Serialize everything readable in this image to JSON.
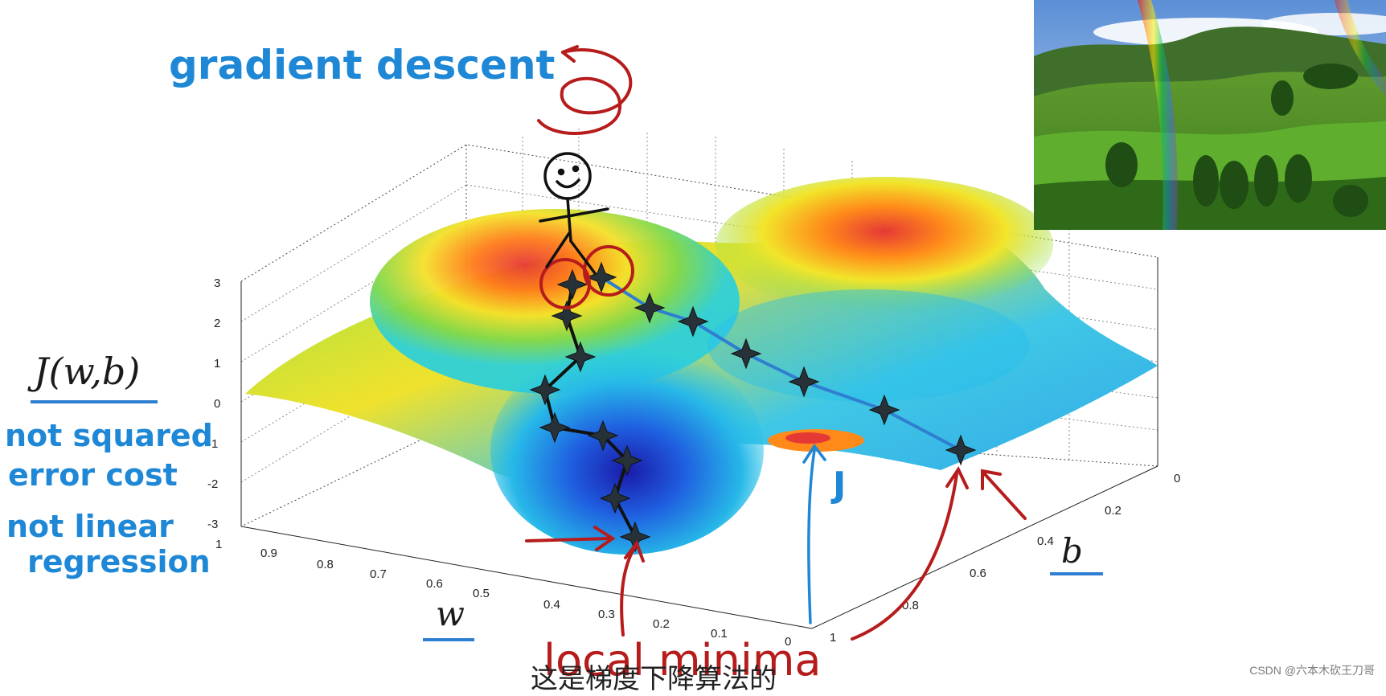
{
  "title": "gradient descent",
  "cost_label": "J(w,b)",
  "notes": [
    "not squared",
    "error cost",
    "not linear",
    "regression"
  ],
  "axis_w_label": "w",
  "axis_b_label": "b",
  "surface_label": "J",
  "minima_label": "local minima",
  "z_ticks": [
    "3",
    "2",
    "1",
    "0",
    "-1",
    "-2",
    "-3"
  ],
  "w_ticks": [
    "1",
    "0.9",
    "0.8",
    "0.7",
    "0.6",
    "0.5",
    "0.4",
    "0.3",
    "0.2",
    "0.1",
    "0"
  ],
  "b_ticks": [
    "0",
    "0.2",
    "0.4",
    "0.6",
    "0.8",
    "1"
  ],
  "subtitle_partial": "这是梯度下降算法的",
  "footer": "CSDN @六本木砍王刀哥",
  "colors": {
    "annotation_blue": "#1e88d6",
    "annotation_red": "#b71c1c",
    "path_blue": "#2f7fd0"
  },
  "icons": [
    "stick-figure-icon",
    "landscape-photo"
  ]
}
